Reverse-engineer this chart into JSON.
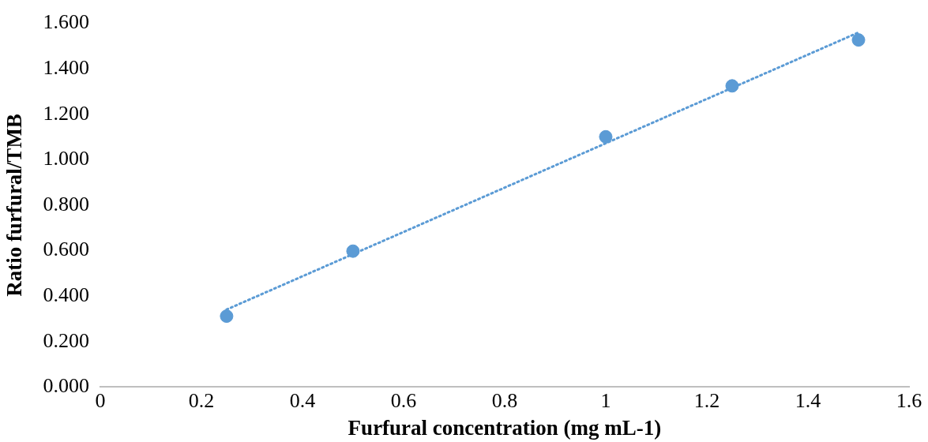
{
  "chart_data": {
    "type": "scatter",
    "xlabel": "Furfural concentration (mg mL-1)",
    "ylabel": "Ratio furfural/TMB",
    "xlim": [
      0,
      1.6
    ],
    "xticks": [
      0,
      0.2,
      0.4,
      0.6,
      0.8,
      1,
      1.2,
      1.4,
      1.6
    ],
    "ylim": [
      0,
      1.6
    ],
    "yticks": [
      {
        "value": 0,
        "label": "0.000"
      },
      {
        "value": 0.2,
        "label": "0.200"
      },
      {
        "value": 0.4,
        "label": "0.400"
      },
      {
        "value": 0.6,
        "label": "0.600"
      },
      {
        "value": 0.8,
        "label": "0.800"
      },
      {
        "value": 1,
        "label": "1.000"
      },
      {
        "value": 1.2,
        "label": "1.200"
      },
      {
        "value": 1.4,
        "label": "1.400"
      },
      {
        "value": 1.6,
        "label": "1.600"
      }
    ],
    "grid": false,
    "legend": false,
    "series": [
      {
        "type": "scatter",
        "color": "#5b9bd5",
        "marker": "circle",
        "x": [
          0.25,
          0.5,
          1,
          1.25,
          1.5
        ],
        "values": [
          0.312,
          0.598,
          1.101,
          1.325,
          1.527
        ]
      },
      {
        "type": "line",
        "color": "#5b9bd5",
        "line_style": "dotted",
        "marker": "none",
        "x": [
          0.25,
          1.5
        ],
        "values": [
          0.341,
          1.56
        ]
      }
    ]
  }
}
